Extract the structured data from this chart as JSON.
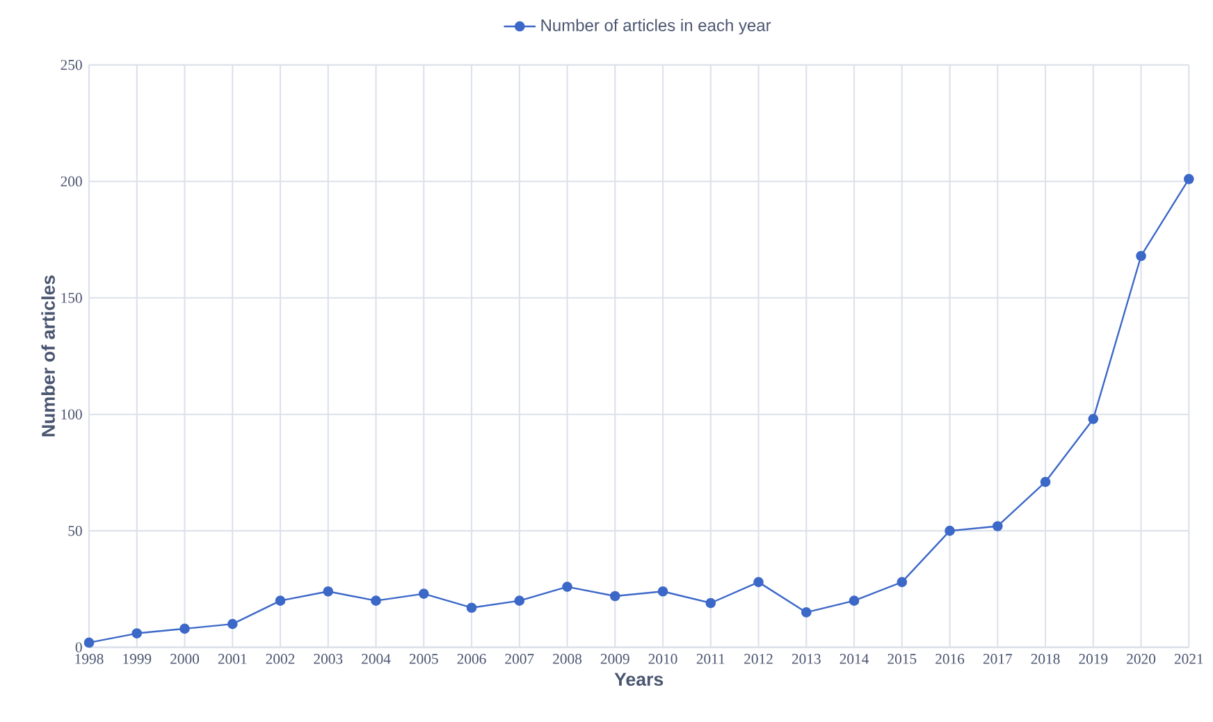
{
  "chart_data": {
    "type": "line",
    "xlabel": "Years",
    "ylabel": "Number of articles",
    "categories": [
      "1998",
      "1999",
      "2000",
      "2001",
      "2002",
      "2003",
      "2004",
      "2005",
      "2006",
      "2007",
      "2008",
      "2009",
      "2010",
      "2011",
      "2012",
      "2013",
      "2014",
      "2015",
      "2016",
      "2017",
      "2018",
      "2019",
      "2020",
      "2021"
    ],
    "series": [
      {
        "name": "Number of articles in each year",
        "color": "#3c68c8",
        "values": [
          2,
          6,
          8,
          10,
          20,
          24,
          20,
          23,
          17,
          20,
          26,
          22,
          24,
          19,
          28,
          15,
          20,
          28,
          50,
          52,
          71,
          98,
          168,
          201
        ]
      }
    ],
    "ylim": [
      0,
      250
    ],
    "yticks": [
      0,
      50,
      100,
      150,
      200,
      250
    ],
    "grid": true,
    "legend": "top",
    "marker": "circle",
    "line_style": "solid"
  }
}
